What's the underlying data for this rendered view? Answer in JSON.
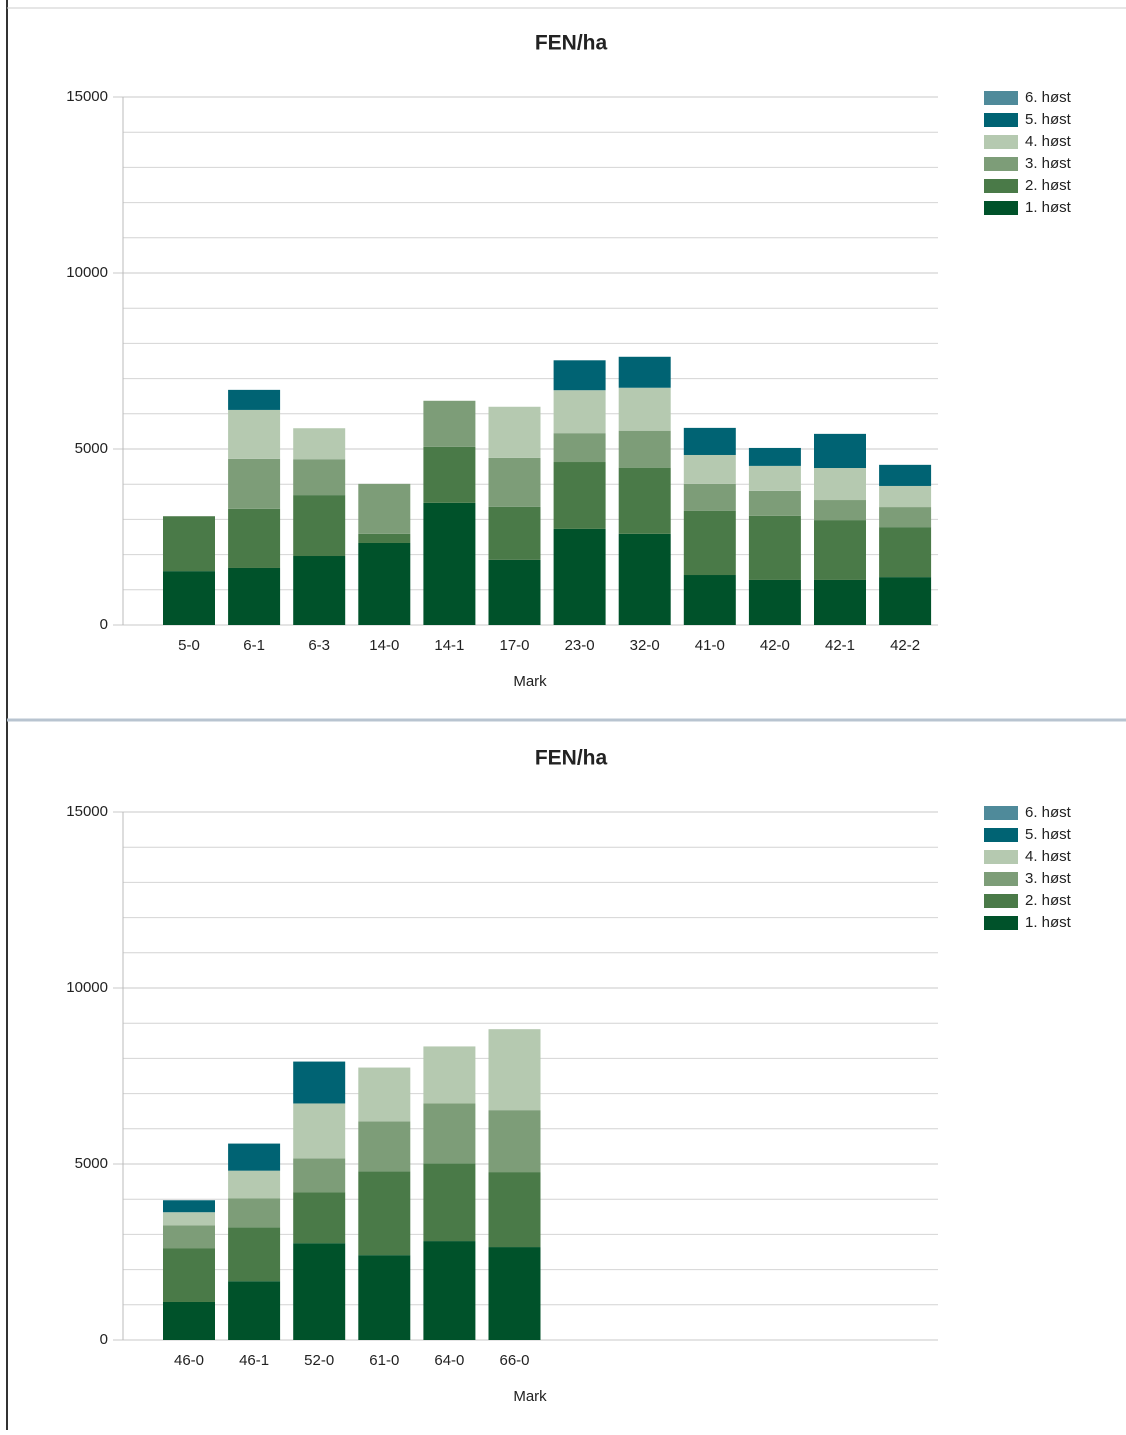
{
  "chart_data": [
    {
      "type": "bar",
      "stacked": true,
      "title": "FEN/ha",
      "x_label": "Mark",
      "categories": [
        "5-0",
        "6-1",
        "6-3",
        "14-0",
        "14-1",
        "17-0",
        "23-0",
        "32-0",
        "41-0",
        "42-0",
        "42-1",
        "42-2"
      ],
      "series": [
        {
          "name": "1. høst",
          "color": "#00522a",
          "values": [
            1530,
            1620,
            1960,
            2330,
            3470,
            1850,
            2730,
            2590,
            1420,
            1280,
            1280,
            1360
          ]
        },
        {
          "name": "2. høst",
          "color": "#4a7a48",
          "values": [
            1560,
            1680,
            1730,
            260,
            1590,
            1510,
            1900,
            1880,
            1820,
            1820,
            1700,
            1420
          ]
        },
        {
          "name": "3. høst",
          "color": "#7d9d78",
          "values": [
            0,
            1420,
            1020,
            1420,
            1310,
            1390,
            820,
            1050,
            770,
            710,
            570,
            570
          ]
        },
        {
          "name": "4. høst",
          "color": "#b5c9b0",
          "values": [
            0,
            1390,
            880,
            0,
            0,
            1450,
            1220,
            1220,
            820,
            710,
            910,
            600
          ]
        },
        {
          "name": "5. høst",
          "color": "#006373",
          "values": [
            0,
            570,
            0,
            0,
            0,
            0,
            850,
            880,
            770,
            510,
            970,
            600
          ]
        },
        {
          "name": "6. høst",
          "color": "#4f8a9a",
          "values": [
            0,
            0,
            0,
            0,
            0,
            0,
            0,
            0,
            0,
            0,
            0,
            0
          ]
        }
      ],
      "ylim": [
        0,
        15000
      ],
      "yticks": [
        0,
        5000,
        10000,
        15000
      ],
      "minor_grid": 1000,
      "grid": true,
      "legend": "top-right"
    },
    {
      "type": "bar",
      "stacked": true,
      "title": "FEN/ha",
      "x_label": "Mark",
      "categories": [
        "46-0",
        "46-1",
        "52-0",
        "61-0",
        "64-0",
        "66-0"
      ],
      "series": [
        {
          "name": "1. høst",
          "color": "#00522a",
          "values": [
            1080,
            1670,
            2750,
            2410,
            2810,
            2640
          ]
        },
        {
          "name": "2. høst",
          "color": "#4a7a48",
          "values": [
            1530,
            1530,
            1450,
            2380,
            2210,
            2130
          ]
        },
        {
          "name": "3. høst",
          "color": "#7d9d78",
          "values": [
            650,
            820,
            960,
            1420,
            1700,
            1760
          ]
        },
        {
          "name": "4. høst",
          "color": "#b5c9b0",
          "values": [
            370,
            790,
            1560,
            1530,
            1620,
            2300
          ]
        },
        {
          "name": "5. høst",
          "color": "#006373",
          "values": [
            340,
            770,
            1190,
            0,
            0,
            0
          ]
        },
        {
          "name": "6. høst",
          "color": "#4f8a9a",
          "values": [
            0,
            0,
            0,
            0,
            0,
            0
          ]
        }
      ],
      "ylim": [
        0,
        15000
      ],
      "yticks": [
        0,
        5000,
        10000,
        15000
      ],
      "minor_grid": 1000,
      "grid": true,
      "legend": "top-right"
    }
  ]
}
